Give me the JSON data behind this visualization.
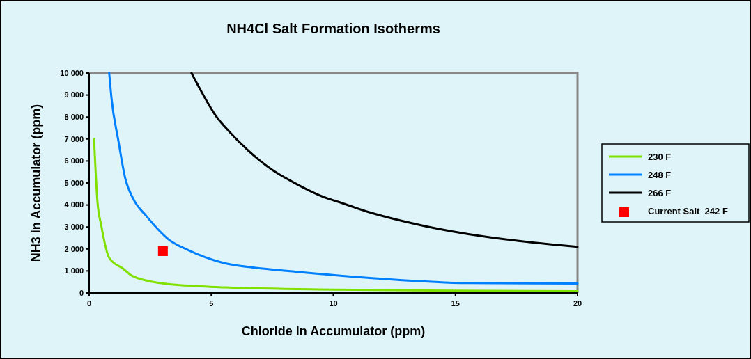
{
  "chart_data": {
    "type": "line",
    "title": "NH4Cl Salt Formation Isotherms",
    "xlabel": "Chloride in Accumulator (ppm)",
    "ylabel": "NH3 in Accumulator (ppm)",
    "xlim": [
      0,
      20
    ],
    "xticks": [
      0,
      5,
      10,
      15,
      20
    ],
    "ylim": [
      0,
      10000
    ],
    "yticks": [
      0,
      {
        "value": 1000,
        "label": "1 000"
      },
      {
        "value": 2000,
        "label": "2 000"
      },
      {
        "value": 3000,
        "label": "3 000"
      },
      {
        "value": 4000,
        "label": "4 000"
      },
      {
        "value": 5000,
        "label": "5 000"
      },
      {
        "value": 6000,
        "label": "6 000"
      },
      {
        "value": 7000,
        "label": "7 000"
      },
      {
        "value": 8000,
        "label": "8 000"
      },
      {
        "value": 9000,
        "label": "9 000"
      },
      {
        "value": 10000,
        "label": "10 000"
      }
    ],
    "grid": false,
    "legend": "right",
    "marker": "none",
    "line_style": "solid",
    "series": [
      {
        "name": "230 F",
        "color": "#80e000",
        "x": [
          0.2,
          0.34,
          0.49,
          0.82,
          1.39,
          1.77,
          2.9,
          4.6,
          5.6,
          10,
          15,
          20
        ],
        "values": [
          7000,
          4150,
          3100,
          1600,
          1100,
          770,
          450,
          300,
          250,
          150,
          100,
          80
        ]
      },
      {
        "name": "248 F",
        "color": "#0080ff",
        "x": [
          0.82,
          0.91,
          1.2,
          1.48,
          1.82,
          2.34,
          3.29,
          4.05,
          5.38,
          7.19,
          8.6,
          11.9,
          15.5,
          20
        ],
        "values": [
          10000,
          8900,
          6900,
          5200,
          4250,
          3500,
          2400,
          1950,
          1400,
          1100,
          950,
          650,
          450,
          430
        ]
      },
      {
        "name": "266 F",
        "color": "#000000",
        "x": [
          4.19,
          4.62,
          5.19,
          5.76,
          6.52,
          7.47,
          8.43,
          9.76,
          10.04,
          11.47,
          13.75,
          16.2,
          20
        ],
        "values": [
          10000,
          9110,
          8050,
          7310,
          6470,
          5620,
          4990,
          4300,
          4200,
          3670,
          3040,
          2560,
          2100
        ]
      },
      {
        "name": "Current Salt  242 F",
        "type": "scatter",
        "marker": "square",
        "color": "#ff0000",
        "x": [
          3.02
        ],
        "values": [
          1900
        ]
      }
    ]
  }
}
